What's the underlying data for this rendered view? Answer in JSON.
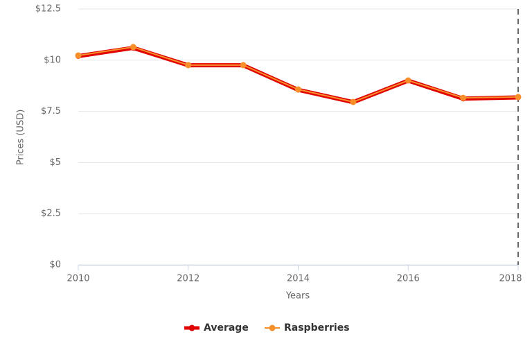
{
  "chart_data": {
    "type": "line",
    "x": [
      2010,
      2011,
      2012,
      2013,
      2014,
      2015,
      2016,
      2017,
      2018
    ],
    "series": [
      {
        "name": "Average",
        "color": "#e00000",
        "values": [
          10.2,
          10.6,
          9.75,
          9.75,
          8.55,
          7.95,
          9.0,
          8.12,
          8.18
        ]
      },
      {
        "name": "Raspberries",
        "color": "#f7902a",
        "values": [
          10.23,
          10.64,
          9.76,
          9.76,
          8.57,
          7.96,
          9.01,
          8.16,
          8.2
        ]
      }
    ],
    "xlim": [
      2010,
      2018
    ],
    "xticks": [
      2010,
      2012,
      2014,
      2016,
      2018
    ],
    "ylim": [
      0,
      12.5
    ],
    "yticks": [
      {
        "value": 0,
        "label": "$0"
      },
      {
        "value": 2.5,
        "label": "$2.5"
      },
      {
        "value": 5,
        "label": "$5"
      },
      {
        "value": 7.5,
        "label": "$7.5"
      },
      {
        "value": 10,
        "label": "$10"
      },
      {
        "value": 12.5,
        "label": "$12.5"
      }
    ],
    "xlabel": "Years",
    "ylabel": "Prices (USD)",
    "grid": true
  }
}
